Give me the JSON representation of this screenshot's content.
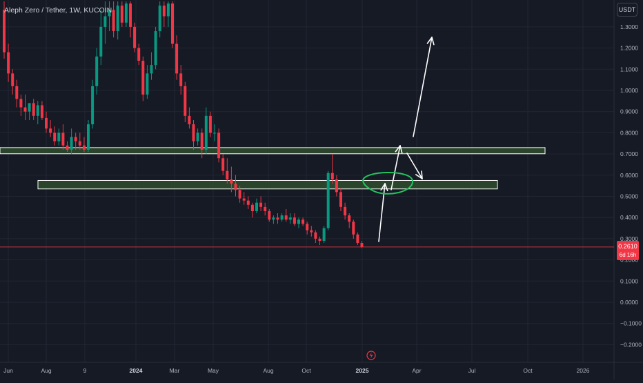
{
  "header": {
    "symbol_title": "Aleph Zero / Tether, 1W, KUCOIN",
    "currency": "USDT"
  },
  "last_price": {
    "value": "0.2610",
    "countdown": "6d 16h"
  },
  "colors": {
    "background": "#161a25",
    "grid": "#232632",
    "axis_text": "#b2b5be",
    "up": "#089981",
    "down": "#f23645",
    "zone_fill": "#2e4d2e",
    "zone_stroke": "#ffffff",
    "arrow": "#ffffff",
    "ellipse": "#22c55e",
    "price_line": "#f23645"
  },
  "chart_data": {
    "type": "candlestick",
    "title": "Aleph Zero / Tether, 1W, KUCOIN",
    "y_axis": {
      "ticks": [
        1.3,
        1.2,
        1.1,
        1.0,
        0.9,
        0.8,
        0.7,
        0.6,
        0.5,
        0.4,
        0.3,
        0.2,
        0.1,
        0.0,
        -0.1,
        -0.2
      ],
      "tick_labels": [
        "1.3000",
        "1.2000",
        "1.1000",
        "1.0000",
        "0.9000",
        "0.8000",
        "0.7000",
        "0.6000",
        "0.5000",
        "0.4000",
        "0.3000",
        "0.2000",
        "0.1000",
        "0.0000",
        "−0.1000",
        "−0.2000"
      ],
      "range": [
        -0.235,
        1.42
      ]
    },
    "x_axis": {
      "tick_labels": [
        "Jun",
        "Aug",
        "9",
        "2024",
        "Mar",
        "May",
        "Aug",
        "Oct",
        "2025",
        "Apr",
        "Jul",
        "Oct",
        "2026"
      ],
      "bold": [
        "2024",
        "2025"
      ]
    },
    "grid": true,
    "ohlc": [
      [
        1.38,
        1.42,
        1.15,
        1.18
      ],
      [
        1.18,
        1.22,
        1.04,
        1.08
      ],
      [
        1.08,
        1.1,
        0.98,
        1.02
      ],
      [
        1.02,
        1.05,
        0.92,
        0.96
      ],
      [
        0.96,
        0.98,
        0.88,
        0.92
      ],
      [
        0.92,
        0.98,
        0.86,
        0.9
      ],
      [
        0.9,
        0.94,
        0.86,
        0.94
      ],
      [
        0.94,
        0.96,
        0.86,
        0.88
      ],
      [
        0.88,
        0.95,
        0.84,
        0.93
      ],
      [
        0.93,
        0.95,
        0.86,
        0.87
      ],
      [
        0.87,
        0.9,
        0.8,
        0.82
      ],
      [
        0.82,
        0.86,
        0.78,
        0.8
      ],
      [
        0.8,
        0.83,
        0.74,
        0.76
      ],
      [
        0.76,
        0.82,
        0.74,
        0.8
      ],
      [
        0.8,
        0.84,
        0.72,
        0.74
      ],
      [
        0.74,
        0.76,
        0.71,
        0.72
      ],
      [
        0.72,
        0.82,
        0.7,
        0.78
      ],
      [
        0.78,
        0.8,
        0.72,
        0.76
      ],
      [
        0.76,
        0.8,
        0.72,
        0.74
      ],
      [
        0.74,
        0.78,
        0.71,
        0.72
      ],
      [
        0.72,
        0.86,
        0.71,
        0.84
      ],
      [
        0.84,
        1.05,
        0.82,
        1.02
      ],
      [
        1.02,
        1.2,
        0.98,
        1.16
      ],
      [
        1.16,
        1.38,
        1.12,
        1.3
      ],
      [
        1.3,
        1.42,
        1.22,
        1.35
      ],
      [
        1.35,
        1.42,
        1.28,
        1.38
      ],
      [
        1.38,
        1.42,
        1.25,
        1.28
      ],
      [
        1.28,
        1.42,
        1.24,
        1.4
      ],
      [
        1.4,
        1.42,
        1.3,
        1.32
      ],
      [
        1.32,
        1.42,
        1.3,
        1.41
      ],
      [
        1.41,
        1.42,
        1.25,
        1.3
      ],
      [
        1.3,
        1.32,
        1.18,
        1.2
      ],
      [
        1.2,
        1.22,
        1.12,
        1.14
      ],
      [
        1.14,
        1.16,
        0.95,
        0.98
      ],
      [
        0.98,
        1.12,
        0.96,
        1.08
      ],
      [
        1.08,
        1.18,
        1.05,
        1.12
      ],
      [
        1.12,
        1.3,
        1.1,
        1.28
      ],
      [
        1.28,
        1.42,
        1.25,
        1.4
      ],
      [
        1.4,
        1.42,
        1.3,
        1.35
      ],
      [
        1.35,
        1.42,
        1.3,
        1.41
      ],
      [
        1.41,
        1.42,
        1.2,
        1.22
      ],
      [
        1.22,
        1.26,
        1.05,
        1.08
      ],
      [
        1.08,
        1.12,
        0.98,
        1.02
      ],
      [
        1.02,
        1.04,
        0.85,
        0.88
      ],
      [
        0.88,
        0.92,
        0.82,
        0.84
      ],
      [
        0.84,
        0.86,
        0.72,
        0.76
      ],
      [
        0.76,
        0.82,
        0.74,
        0.8
      ],
      [
        0.8,
        0.82,
        0.68,
        0.72
      ],
      [
        0.72,
        0.92,
        0.7,
        0.88
      ],
      [
        0.88,
        0.9,
        0.78,
        0.8
      ],
      [
        0.8,
        0.84,
        0.76,
        0.8
      ],
      [
        0.8,
        0.82,
        0.66,
        0.68
      ],
      [
        0.68,
        0.7,
        0.6,
        0.62
      ],
      [
        0.62,
        0.68,
        0.56,
        0.58
      ],
      [
        0.58,
        0.64,
        0.52,
        0.56
      ],
      [
        0.56,
        0.6,
        0.5,
        0.53
      ],
      [
        0.53,
        0.55,
        0.47,
        0.49
      ],
      [
        0.49,
        0.52,
        0.46,
        0.48
      ],
      [
        0.48,
        0.5,
        0.44,
        0.46
      ],
      [
        0.46,
        0.47,
        0.4,
        0.43
      ],
      [
        0.43,
        0.49,
        0.42,
        0.47
      ],
      [
        0.47,
        0.5,
        0.43,
        0.45
      ],
      [
        0.45,
        0.47,
        0.41,
        0.43
      ],
      [
        0.43,
        0.44,
        0.38,
        0.39
      ],
      [
        0.39,
        0.41,
        0.37,
        0.4
      ],
      [
        0.4,
        0.42,
        0.37,
        0.39
      ],
      [
        0.39,
        0.42,
        0.38,
        0.41
      ],
      [
        0.41,
        0.44,
        0.38,
        0.39
      ],
      [
        0.39,
        0.42,
        0.37,
        0.4
      ],
      [
        0.4,
        0.42,
        0.36,
        0.37
      ],
      [
        0.37,
        0.4,
        0.35,
        0.39
      ],
      [
        0.39,
        0.4,
        0.36,
        0.37
      ],
      [
        0.37,
        0.38,
        0.32,
        0.34
      ],
      [
        0.34,
        0.36,
        0.31,
        0.33
      ],
      [
        0.33,
        0.34,
        0.28,
        0.3
      ],
      [
        0.3,
        0.31,
        0.27,
        0.29
      ],
      [
        0.29,
        0.36,
        0.28,
        0.35
      ],
      [
        0.35,
        0.62,
        0.34,
        0.61
      ],
      [
        0.61,
        0.7,
        0.56,
        0.58
      ],
      [
        0.58,
        0.6,
        0.5,
        0.52
      ],
      [
        0.52,
        0.54,
        0.43,
        0.45
      ],
      [
        0.45,
        0.47,
        0.39,
        0.41
      ],
      [
        0.41,
        0.42,
        0.35,
        0.38
      ],
      [
        0.38,
        0.39,
        0.3,
        0.32
      ],
      [
        0.32,
        0.33,
        0.27,
        0.28
      ],
      [
        0.28,
        0.29,
        0.255,
        0.261
      ]
    ],
    "last_value": 0.261,
    "annotations": {
      "zones": [
        {
          "top": 0.73,
          "bottom": 0.701
        },
        {
          "top": 0.575,
          "bottom": 0.535
        }
      ],
      "arrows": 4,
      "ellipse_center_price": 0.565
    }
  }
}
